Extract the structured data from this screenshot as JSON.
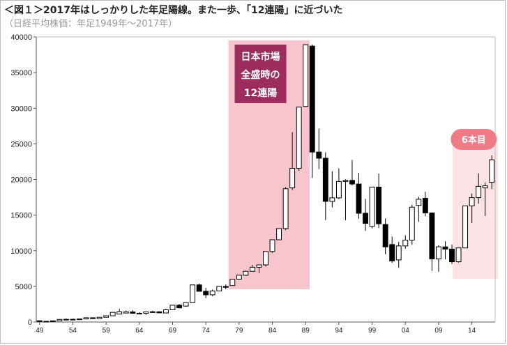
{
  "header": {
    "title": "＜図１＞2017年はしっかりした年足陽線。また一歩、「12連陽」に近づいた",
    "subtitle": "（日経平均株価：年足1949年～2017年）"
  },
  "annotations": {
    "peak_box_lines": [
      "日本市場",
      "全盛時の",
      "12連陽"
    ],
    "badge": "6本目",
    "colors": {
      "peak_region": "#f7c6cc",
      "peak_box": "#9b2c5c",
      "recent_region": "#fbe3e6",
      "badge": "#f07b86"
    }
  },
  "chart_data": {
    "type": "candlestick",
    "title": "",
    "xlabel": "",
    "ylabel": "",
    "ylim": [
      0,
      40000
    ],
    "yticks": [
      0,
      5000,
      10000,
      15000,
      20000,
      25000,
      30000,
      35000,
      40000
    ],
    "xticks": [
      "49",
      "54",
      "59",
      "64",
      "69",
      "74",
      "79",
      "84",
      "89",
      "94",
      "99",
      "04",
      "09",
      "14"
    ],
    "grid": false,
    "highlight_ranges": [
      {
        "from_year": 1978,
        "to_year": 1989
      },
      {
        "from_year": 2012,
        "to_year": 2017
      }
    ],
    "years": [
      1949,
      1950,
      1951,
      1952,
      1953,
      1954,
      1955,
      1956,
      1957,
      1958,
      1959,
      1960,
      1961,
      1962,
      1963,
      1964,
      1965,
      1966,
      1967,
      1968,
      1969,
      1970,
      1971,
      1972,
      1973,
      1974,
      1975,
      1976,
      1977,
      1978,
      1979,
      1980,
      1981,
      1982,
      1983,
      1984,
      1985,
      1986,
      1987,
      1988,
      1989,
      1990,
      1991,
      1992,
      1993,
      1994,
      1995,
      1996,
      1997,
      1998,
      1999,
      2000,
      2001,
      2002,
      2003,
      2004,
      2005,
      2006,
      2007,
      2008,
      2009,
      2010,
      2011,
      2012,
      2013,
      2014,
      2015,
      2016,
      2017
    ],
    "open": [
      176,
      86,
      102,
      166,
      362,
      377,
      356,
      425,
      595,
      474,
      666,
      874,
      1117,
      1258,
      1420,
      1217,
      1227,
      1418,
      1432,
      1266,
      1715,
      2359,
      2232,
      2714,
      5207,
      4306,
      3818,
      4358,
      4990,
      5115,
      6001,
      6560,
      7116,
      7681,
      8016,
      9893,
      11542,
      13113,
      18820,
      21564,
      30243,
      38712,
      23849,
      22983,
      16925,
      17417,
      19723,
      19868,
      19361,
      15258,
      13416,
      18934,
      13691,
      10871,
      8713,
      10676,
      11489,
      16361,
      17353,
      15307,
      8860,
      10546,
      10229,
      8455,
      10395,
      16291,
      17450,
      18818,
      19594
    ],
    "high": [
      176,
      135,
      170,
      365,
      474,
      480,
      430,
      600,
      626,
      666,
      874,
      1356,
      1830,
      1589,
      1634,
      1369,
      1440,
      1588,
      1506,
      1851,
      2359,
      2534,
      2740,
      5207,
      5359,
      4787,
      4564,
      4990,
      5287,
      6001,
      6590,
      7188,
      8019,
      8026,
      9893,
      11577,
      13128,
      18936,
      26646,
      30159,
      38916,
      38950,
      27146,
      23801,
      21148,
      21552,
      20023,
      22750,
      20910,
      17264,
      18934,
      20833,
      14529,
      11980,
      11238,
      12164,
      16445,
      17563,
      18262,
      15156,
      10767,
      11339,
      10858,
      10395,
      16320,
      18030,
      20868,
      19592,
      23382
    ],
    "low": [
      85,
      85,
      99,
      165,
      295,
      315,
      350,
      420,
      474,
      470,
      660,
      870,
      1250,
      1216,
      1200,
      1200,
      1020,
      1370,
      1250,
      1260,
      1700,
      1929,
      2133,
      2700,
      4400,
      3355,
      3627,
      4358,
      4597,
      5115,
      5924,
      6475,
      7110,
      6849,
      7803,
      9703,
      11545,
      12881,
      18544,
      21217,
      30165,
      20221,
      21456,
      14309,
      16078,
      17242,
      14295,
      19161,
      14488,
      12787,
      13122,
      13182,
      9504,
      8303,
      7607,
      10299,
      10825,
      14045,
      14837,
      7162,
      7054,
      8796,
      8135,
      8328,
      10395,
      13885,
      16592,
      14864,
      18650
    ],
    "close": [
      86,
      102,
      166,
      362,
      377,
      356,
      425,
      595,
      474,
      666,
      874,
      1356,
      1432,
      1420,
      1217,
      1216,
      1418,
      1432,
      1283,
      1715,
      2359,
      1987,
      2714,
      5207,
      4306,
      3817,
      4358,
      4990,
      4866,
      6001,
      6569,
      7116,
      7681,
      8016,
      9893,
      11542,
      13113,
      18701,
      21564,
      30159,
      38916,
      23849,
      22983,
      16925,
      17417,
      19723,
      19868,
      19361,
      15258,
      13842,
      18934,
      13785,
      10543,
      8579,
      10676,
      11488,
      16111,
      17225,
      15307,
      8860,
      10546,
      10229,
      8455,
      10395,
      16291,
      17450,
      19033,
      19114,
      22764
    ]
  }
}
